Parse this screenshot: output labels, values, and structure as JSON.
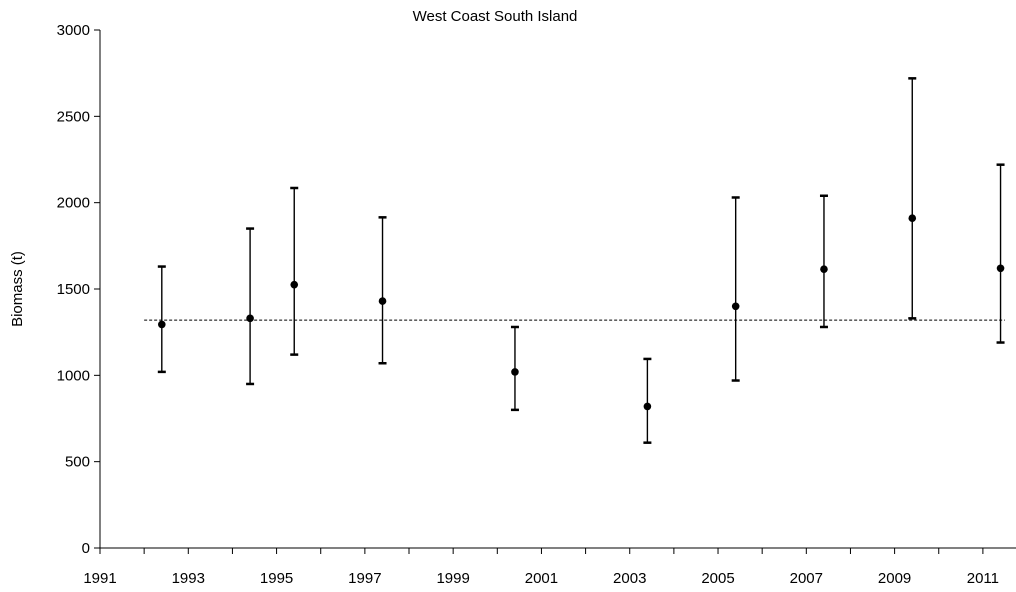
{
  "chart_data": {
    "type": "scatter",
    "title": "West Coast South Island",
    "xlabel": "",
    "ylabel": "Biomass (t)",
    "xlim": [
      1991,
      2011.75
    ],
    "ylim": [
      0,
      3000
    ],
    "x_ticks": [
      1991,
      1992,
      1993,
      1994,
      1995,
      1996,
      1997,
      1998,
      1999,
      2000,
      2001,
      2002,
      2003,
      2004,
      2005,
      2006,
      2007,
      2008,
      2009,
      2010,
      2011
    ],
    "x_tick_labels": [
      "1991",
      "1993",
      "1995",
      "1997",
      "1999",
      "2001",
      "2003",
      "2005",
      "2007",
      "2009",
      "2011"
    ],
    "y_ticks": [
      0,
      500,
      1000,
      1500,
      2000,
      2500,
      3000
    ],
    "y_tick_labels": [
      "0",
      "500",
      "1000",
      "1500",
      "2000",
      "2500",
      "3000"
    ],
    "grid": false,
    "reference_line": {
      "y": 1320,
      "style": "dashed",
      "x_range": [
        1992,
        2011.5
      ]
    },
    "series": [
      {
        "x": [
          1992.4,
          1994.4,
          1995.4,
          1997.4,
          2000.4,
          2003.4,
          2005.4,
          2007.4,
          2009.4,
          2011.4
        ],
        "y": [
          1295,
          1330,
          1525,
          1430,
          1020,
          820,
          1400,
          1615,
          1910,
          1620
        ],
        "y_lower": [
          1020,
          950,
          1120,
          1070,
          800,
          610,
          970,
          1280,
          1330,
          1190
        ],
        "y_upper": [
          1630,
          1850,
          2085,
          1915,
          1280,
          1095,
          2030,
          2040,
          2720,
          2220
        ]
      }
    ],
    "colors": {
      "marker": "#000000",
      "axis": "#000000",
      "reference_line": "#000000"
    }
  }
}
